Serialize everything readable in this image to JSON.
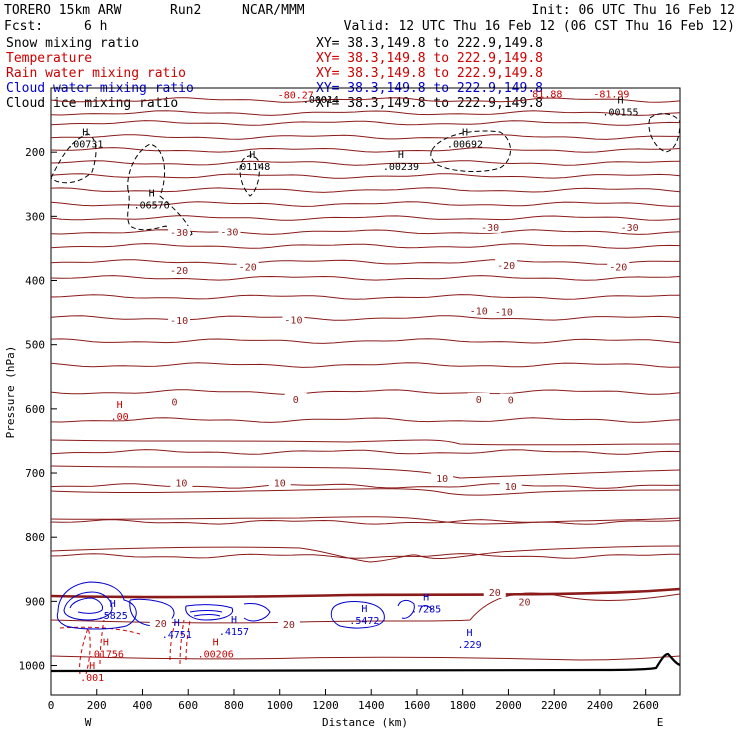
{
  "header": {
    "model": "TORERO   15km ARW",
    "run": "Run2",
    "org": "NCAR/MMM",
    "init": "Init: 06 UTC Thu 16 Feb 12",
    "fcst_label": "Fcst:",
    "fcst_value": "6 h",
    "valid": "Valid: 12 UTC Thu 16 Feb 12 (06 CST Thu 16 Feb 12)"
  },
  "legend": [
    {
      "name": "Snow mixing ratio",
      "color": "#000000",
      "xy": "XY=  38.3,149.8 to 222.9,149.8",
      "xy_color": "#000000"
    },
    {
      "name": "Temperature",
      "color": "#cc0000",
      "xy": "XY=  38.3,149.8 to 222.9,149.8",
      "xy_color": "#cc0000"
    },
    {
      "name": "Rain water mixing ratio",
      "color": "#cc0000",
      "xy": "XY=  38.3,149.8 to 222.9,149.8",
      "xy_color": "#cc0000"
    },
    {
      "name": "Cloud water mixing ratio",
      "color": "#0000cc",
      "xy": "XY=  38.3,149.8 to 222.9,149.8",
      "xy_color": "#0000cc"
    },
    {
      "name": "Cloud ice mixing ratio",
      "color": "#000000",
      "xy": "XY=  38.3,149.8 to 222.9,149.8",
      "xy_color": "#000000"
    }
  ],
  "chart_data": {
    "type": "cross-section contour",
    "xlabel": "Distance (km)",
    "ylabel": "Pressure (hPa)",
    "xlim": [
      0,
      2750
    ],
    "ylim": [
      1050,
      100
    ],
    "xticks": [
      0,
      200,
      400,
      600,
      800,
      1000,
      1200,
      1400,
      1600,
      1800,
      2000,
      2200,
      2400,
      2600
    ],
    "yticks": [
      200,
      300,
      400,
      500,
      600,
      700,
      800,
      900,
      1000
    ],
    "west_label": "W",
    "east_label": "E",
    "temperature_isotherm_labels": [
      {
        "text": "-30",
        "x": 560,
        "p": 326
      },
      {
        "text": "-30",
        "x": 780,
        "p": 325
      },
      {
        "text": "-30",
        "x": 1920,
        "p": 318
      },
      {
        "text": "-30",
        "x": 2530,
        "p": 318
      },
      {
        "text": "-20",
        "x": 560,
        "p": 385
      },
      {
        "text": "-20",
        "x": 860,
        "p": 380
      },
      {
        "text": "-20",
        "x": 1990,
        "p": 377
      },
      {
        "text": "-20",
        "x": 2480,
        "p": 380
      },
      {
        "text": "-10",
        "x": 560,
        "p": 463
      },
      {
        "text": "-10",
        "x": 1060,
        "p": 462
      },
      {
        "text": "-10",
        "x": 1870,
        "p": 448
      },
      {
        "text": "-10",
        "x": 1980,
        "p": 450
      },
      {
        "text": "0",
        "x": 540,
        "p": 590
      },
      {
        "text": "0",
        "x": 1070,
        "p": 586
      },
      {
        "text": "0",
        "x": 1870,
        "p": 586
      },
      {
        "text": "0",
        "x": 2010,
        "p": 587
      },
      {
        "text": "10",
        "x": 570,
        "p": 716
      },
      {
        "text": "10",
        "x": 1000,
        "p": 716
      },
      {
        "text": "10",
        "x": 1710,
        "p": 709
      },
      {
        "text": "10",
        "x": 2010,
        "p": 722
      },
      {
        "text": "20",
        "x": 480,
        "p": 935
      },
      {
        "text": "20",
        "x": 1040,
        "p": 937
      },
      {
        "text": "20",
        "x": 1940,
        "p": 887
      },
      {
        "text": "20",
        "x": 2070,
        "p": 902
      }
    ],
    "extremum_labels": [
      {
        "mark": "H",
        "value": ".00731",
        "x": 150,
        "p": 180,
        "color": "#000000"
      },
      {
        "mark": "H",
        "value": ".01148",
        "x": 880,
        "p": 215,
        "color": "#000000"
      },
      {
        "mark": "H",
        "value": ".00239",
        "x": 1530,
        "p": 215,
        "color": "#000000"
      },
      {
        "mark": "H",
        "value": ".00692",
        "x": 1810,
        "p": 180,
        "color": "#000000"
      },
      {
        "mark": "H",
        "value": ".00155",
        "x": 2490,
        "p": 130,
        "color": "#000000"
      },
      {
        "mark": "H",
        "value": ".06576",
        "x": 440,
        "p": 275,
        "color": "#000000"
      },
      {
        "mark": "H",
        "value": ".00",
        "x": 300,
        "p": 605,
        "color": "#cc0000"
      },
      {
        "mark": "H",
        "value": ".01756",
        "x": 240,
        "p": 975,
        "color": "#cc0000"
      },
      {
        "mark": "H",
        "value": ".00206",
        "x": 720,
        "p": 975,
        "color": "#cc0000"
      },
      {
        "mark": "H",
        "value": ".001",
        "x": 180,
        "p": 1012,
        "color": "#cc0000"
      },
      {
        "mark": "H",
        "value": ".5825",
        "x": 270,
        "p": 915,
        "color": "#0000cc"
      },
      {
        "mark": "H",
        "value": ".4751",
        "x": 550,
        "p": 945,
        "color": "#0000cc"
      },
      {
        "mark": "H",
        "value": ".4157",
        "x": 800,
        "p": 940,
        "color": "#0000cc"
      },
      {
        "mark": "H",
        "value": ".5472",
        "x": 1370,
        "p": 923,
        "color": "#0000cc"
      },
      {
        "mark": "H",
        "value": ".7285",
        "x": 1640,
        "p": 905,
        "color": "#0000cc"
      },
      {
        "mark": "H",
        "value": ".229",
        "x": 1830,
        "p": 960,
        "color": "#0000cc"
      }
    ],
    "top_labels": [
      {
        "text": "-80.27",
        "x": 1070,
        "p": 116,
        "color": "#cc0000"
      },
      {
        "text": "81.88",
        "x": 2170,
        "p": 115,
        "color": "#cc0000"
      },
      {
        "text": "-81.99",
        "x": 2450,
        "p": 115,
        "color": "#cc0000"
      },
      {
        "text": ".00014",
        "x": 1180,
        "p": 123,
        "color": "#000000"
      }
    ],
    "colors": {
      "isotherm": "#8b1a1a",
      "freezing": "#8b1a1a",
      "snow": "#000000",
      "rain": "#cc0000",
      "cloud_water": "#0000cc",
      "ground": "#000000"
    }
  }
}
